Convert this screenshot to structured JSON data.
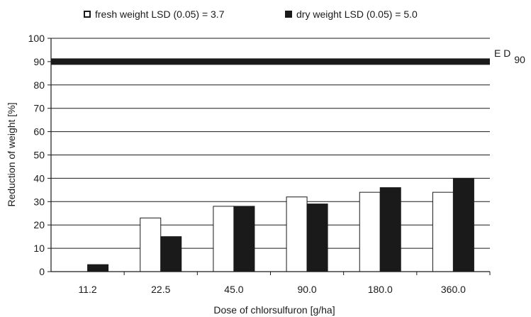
{
  "chart_data": {
    "type": "bar",
    "title": "",
    "xlabel": "Dose of chlorsulfuron [g/ha]",
    "ylabel": "Reduction of weight [%]",
    "categories": [
      "11.2",
      "22.5",
      "45.0",
      "90.0",
      "180.0",
      "360.0"
    ],
    "series": [
      {
        "name": "fresh weight LSD (0.05) = 3.7",
        "color": "#ffffff",
        "values": [
          0,
          23,
          28,
          32,
          34,
          34
        ]
      },
      {
        "name": "dry weight LSD (0.05) = 5.0",
        "color": "#1a1a1a",
        "values": [
          3,
          15,
          28,
          29,
          36,
          40
        ]
      }
    ],
    "ylim": [
      0,
      100
    ],
    "yticks": [
      0,
      10,
      20,
      30,
      40,
      50,
      60,
      70,
      80,
      90,
      100
    ],
    "grid": true,
    "legend_position": "top",
    "reference_line": {
      "value": 90,
      "label_main": "E D",
      "label_sub": "90"
    }
  }
}
